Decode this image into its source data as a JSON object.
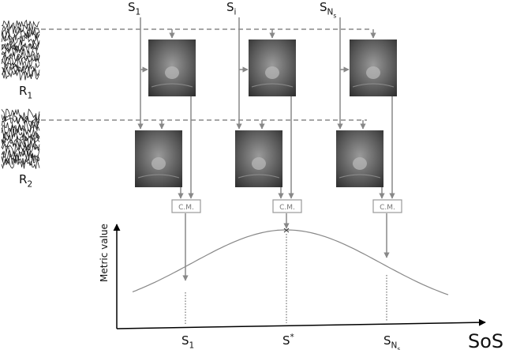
{
  "columns": [
    {
      "label": {
        "base": "S",
        "sub": "1"
      },
      "cm": "C.M."
    },
    {
      "label": {
        "base": "S",
        "sub": "i"
      },
      "cm": "C.M."
    },
    {
      "label": {
        "base": "S",
        "sub": "N",
        "subsub": "s"
      },
      "cm": "C.M."
    }
  ],
  "rows": [
    {
      "base": "R",
      "sub": "1"
    },
    {
      "base": "R",
      "sub": "2"
    }
  ],
  "plot": {
    "y_label": "Metric value",
    "x_label": "SoS",
    "x_ticks": [
      {
        "base": "S",
        "sub": "1"
      },
      {
        "base": "S",
        "sup": "*"
      },
      {
        "base": "S",
        "sub": "N",
        "subsub": "s"
      }
    ]
  }
}
